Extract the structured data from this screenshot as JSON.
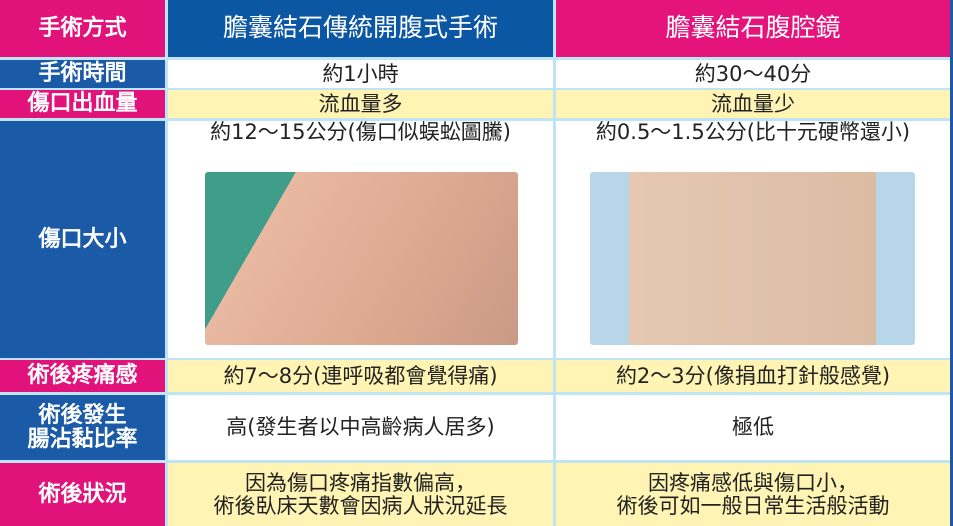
{
  "table": {
    "header": [
      "手術方式",
      "膽囊結石傳統開腹式手術",
      "膽囊結石腹腔鏡"
    ],
    "rows": [
      [
        "手術時間",
        "約1小時",
        "約30～40分"
      ],
      [
        "傷口出血量",
        "流血量多",
        "流血量少"
      ],
      [
        "傷口大小",
        "約12～15公分(傷口似蜈蚣圖騰)",
        "約0.5～1.5公分(比十元硬幣還小)"
      ],
      [
        "術後疼痛感",
        "約7～8分(連呼吸都會覺得痛)",
        "約2～3分(像捐血打針般感覺)"
      ],
      [
        [
          "術後發生",
          "腸沾黏比率"
        ],
        "高(發生者以中高齡病人居多)",
        "極低"
      ],
      [
        "術後狀況",
        [
          "因為傷口疼痛指數偏高，",
          "術後臥床天數會因病人狀況延長"
        ],
        [
          "因疼痛感低與傷口小，",
          "術後可如一般日常生活般活動"
        ]
      ]
    ]
  }
}
